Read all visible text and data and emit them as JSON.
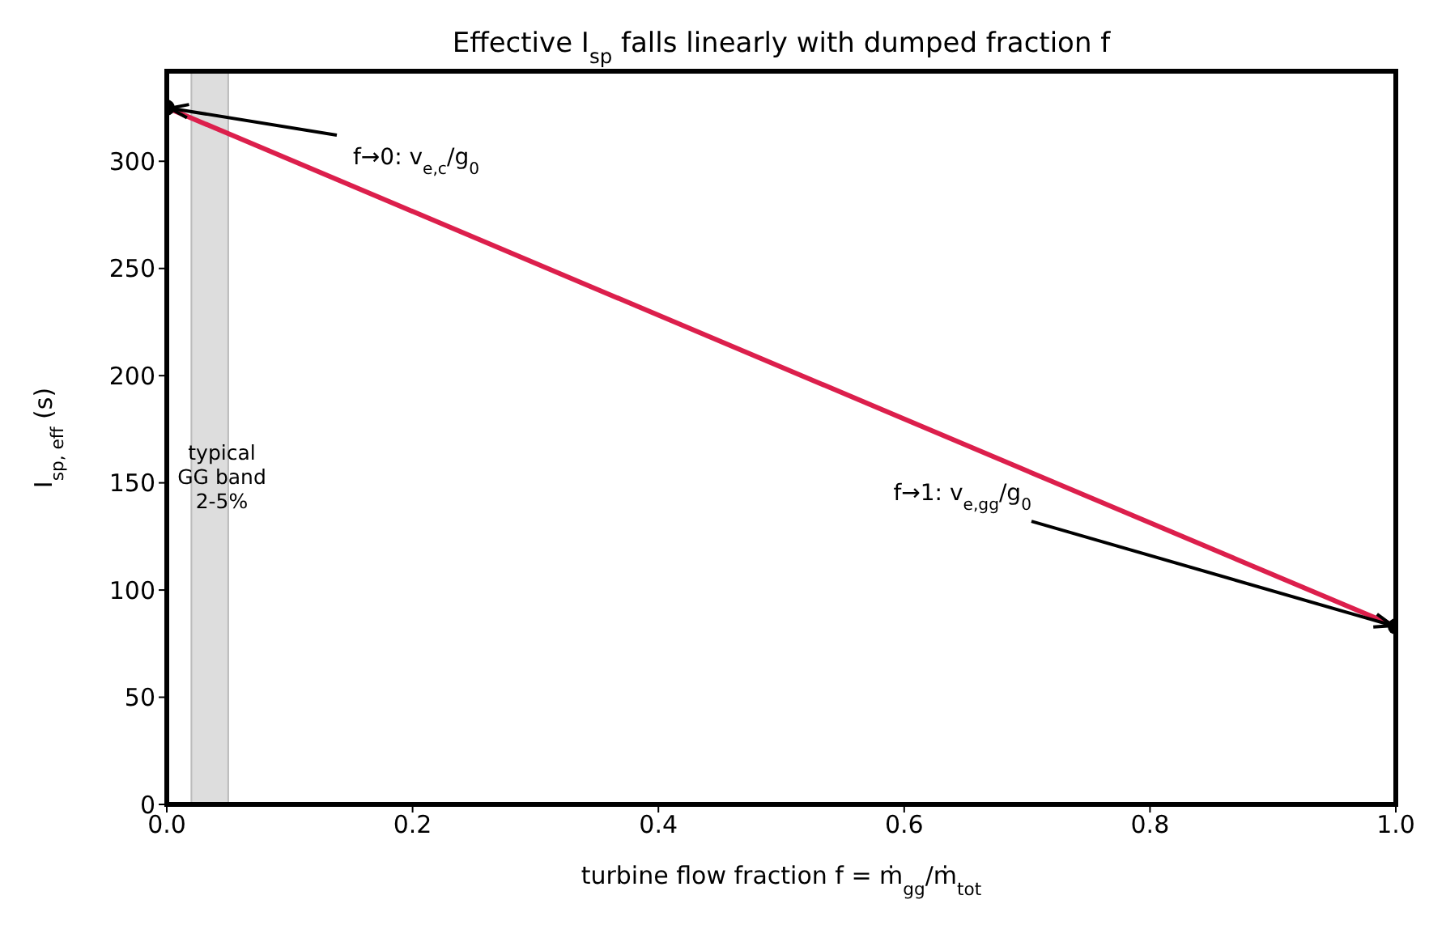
{
  "chart_data": {
    "type": "line",
    "title": "Effective I$_{sp}$ falls linearly with dumped fraction f",
    "xlabel": "turbine flow fraction  f = ṁ$_{gg}$/ṁ$_{tot}$",
    "ylabel": "I$_{sp, eff}$  (s)",
    "x": [
      0,
      1
    ],
    "series": [
      {
        "color": "#dc1f4c",
        "values": [
          325,
          83
        ]
      },
      {
        "type": "scatter",
        "color": "#000000",
        "values": [
          325,
          83
        ]
      }
    ],
    "xlim": [
      0,
      1
    ],
    "xticks": [
      {
        "value": 0,
        "label": "0.0"
      },
      {
        "value": 0.2,
        "label": "0.2"
      },
      {
        "value": 0.4,
        "label": "0.4"
      },
      {
        "value": 0.6,
        "label": "0.6"
      },
      {
        "value": 0.8,
        "label": "0.8"
      },
      {
        "value": 1,
        "label": "1.0"
      }
    ],
    "ylim": [
      0,
      342
    ],
    "yticks": [
      0,
      50,
      100,
      150,
      200,
      250,
      300
    ],
    "bands": [
      {
        "axis": "x",
        "from": 0.02,
        "to": 0.05,
        "label": "typical\nGG band\n2-5%",
        "color": "#dddddd"
      }
    ],
    "annotations": [
      {
        "text": "f→0: v$_{e,c}$/g$_{0}$",
        "x": 0,
        "y": 325
      },
      {
        "text": "f→1: v$_{e,gg}$/g$_{0}$",
        "x": 1,
        "y": 83
      }
    ],
    "grid": false
  }
}
